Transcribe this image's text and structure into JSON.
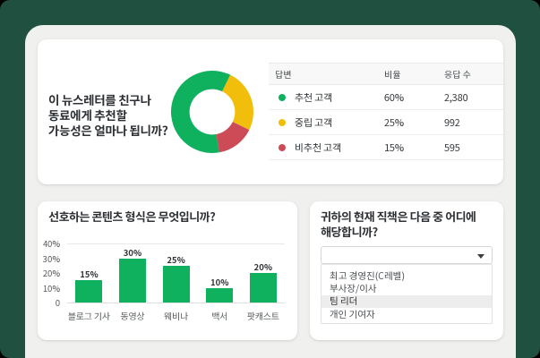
{
  "theme": {
    "backdrop": "#393634",
    "screen_bg": "#20503F",
    "panel_bg": "#F0F1EF",
    "card_bg": "#FFFFFF",
    "green": "#0FB05E",
    "yellow": "#F0BE0B",
    "red": "#CC4B57"
  },
  "nps_card": {
    "question_lines": [
      "이 뉴스레터를 친구나",
      "동료에게 추천할",
      "가능성은 얼마나 됩니까?"
    ],
    "question": "이 뉴스레터를 친구나 동료에게 추천할 가능성은 얼마나 됩니까?",
    "table": {
      "headers": [
        "답변",
        "비율",
        "응답 수"
      ],
      "rows": [
        {
          "label": "추천 고객",
          "percent": "60%",
          "count": "2,380",
          "color": "#0FB05E"
        },
        {
          "label": "중립 고객",
          "percent": "25%",
          "count": "992",
          "color": "#F0BE0B"
        },
        {
          "label": "비추천 고객",
          "percent": "15%",
          "count": "595",
          "color": "#CC4B57"
        }
      ]
    }
  },
  "content_card": {
    "title": "선호하는 콘텐츠 형식은 무엇입니까?"
  },
  "role_card": {
    "title_lines": [
      "귀하의 현재 직책은 다음 중 어디에",
      "해당합니까?"
    ],
    "dropdown": {
      "value": "",
      "selected_index": 2,
      "options": [
        "최고 경영진(C레벨)",
        "부사장/이사",
        "팀 리더",
        "개인 기여자"
      ]
    }
  },
  "chart_data": [
    {
      "type": "pie",
      "variant": "donut",
      "title": "이 뉴스레터를 친구나 동료에게 추천할 가능성은 얼마나 됩니까?",
      "labels": [
        "추천 고객",
        "중립 고객",
        "비추천 고객"
      ],
      "values": [
        60,
        25,
        15
      ],
      "counts": [
        2380,
        992,
        595
      ],
      "colors": [
        "#0FB05E",
        "#F0BE0B",
        "#CC4B57"
      ],
      "start_angle_deg": 170,
      "inner_radius_ratio": 0.552,
      "legend_position": "table-right"
    },
    {
      "type": "bar",
      "title": "선호하는 콘텐츠 형식은 무엇입니까?",
      "categories": [
        "블로그 기사",
        "동영상",
        "웨비나",
        "백서",
        "팟캐스트"
      ],
      "values": [
        15,
        30,
        25,
        10,
        20
      ],
      "value_labels": [
        "15%",
        "30%",
        "25%",
        "10%",
        "20%"
      ],
      "ylabel": "",
      "xlabel": "",
      "ylim": [
        0,
        40
      ],
      "yticks": [
        "0",
        "10%",
        "20%",
        "30%",
        "40%"
      ],
      "ytick_values": [
        0,
        10,
        20,
        30,
        40
      ],
      "grid": "top-and-baseline",
      "bar_color": "#0FB05E"
    }
  ]
}
